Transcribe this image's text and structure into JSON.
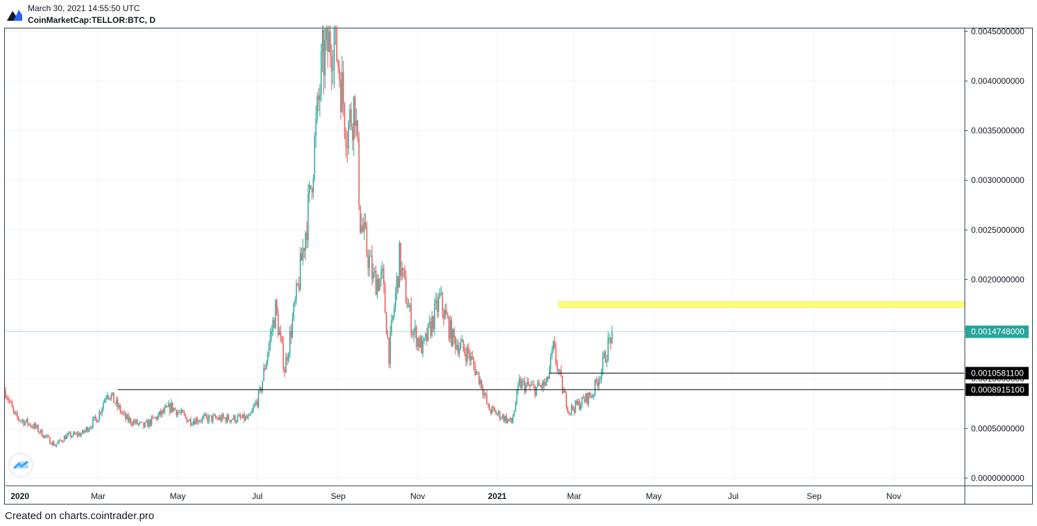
{
  "header": {
    "timestamp": "March 30, 2021 14:55:50 UTC",
    "symbol": "CoinMarketCap:TELLOR:BTC, D"
  },
  "footer": {
    "text": "Created on charts.cointrader.pro"
  },
  "colors": {
    "up": "#26a69a",
    "down": "#ef5350",
    "highlight_zone": "#ffff66",
    "last_price_badge": "#26a69a",
    "level_badge": "#000000",
    "frame": "#2e3f4f"
  },
  "icons": {
    "logo": "tradingview-logo-icon",
    "watermark": "tradingview-cloud-icon"
  },
  "chart_data": {
    "type": "candlestick",
    "title": "",
    "xlabel": "",
    "ylabel": "",
    "y_axis_position": "right",
    "grid": true,
    "ylim": [
      0.0,
      0.0046
    ],
    "x_range": [
      "2019-12-21",
      "2021-12-25"
    ],
    "x_ticks": [
      {
        "date": "2020-01-01",
        "label": "2020",
        "bold": true
      },
      {
        "date": "2020-03-01",
        "label": "Mar"
      },
      {
        "date": "2020-05-01",
        "label": "May"
      },
      {
        "date": "2020-07-01",
        "label": "Jul"
      },
      {
        "date": "2020-09-01",
        "label": "Sep"
      },
      {
        "date": "2020-11-01",
        "label": "Nov"
      },
      {
        "date": "2021-01-01",
        "label": "2021",
        "bold": true
      },
      {
        "date": "2021-03-01",
        "label": "Mar"
      },
      {
        "date": "2021-05-01",
        "label": "May"
      },
      {
        "date": "2021-07-01",
        "label": "Jul"
      },
      {
        "date": "2021-09-01",
        "label": "Sep"
      },
      {
        "date": "2021-11-01",
        "label": "Nov"
      }
    ],
    "y_ticks": [
      "0.0000000000",
      "0.0005000000",
      "0.0010000000",
      "0.0015000000",
      "0.0020000000",
      "0.0025000000",
      "0.0030000000",
      "0.0035000000",
      "0.0040000000",
      "0.0045000000"
    ],
    "last_price": {
      "value": 0.0014748,
      "label": "0.0014748000"
    },
    "horizontal_levels": [
      {
        "value": 0.001058,
        "label": "0.0010581100",
        "from": "2021-02-10"
      },
      {
        "value": 0.0008915,
        "label": "0.0008915100",
        "from": "2020-03-16"
      }
    ],
    "zone": {
      "from": "2021-02-17",
      "y_low": 0.00172,
      "y_high": 0.00178
    },
    "series_anchors": [
      {
        "date": "2019-12-21",
        "close": 0.00088
      },
      {
        "date": "2019-12-28",
        "close": 0.00062
      },
      {
        "date": "2020-01-12",
        "close": 0.00052
      },
      {
        "date": "2020-01-28",
        "close": 0.00033
      },
      {
        "date": "2020-02-05",
        "close": 0.00042
      },
      {
        "date": "2020-02-18",
        "close": 0.00045
      },
      {
        "date": "2020-03-01",
        "close": 0.00062
      },
      {
        "date": "2020-03-08",
        "close": 0.00088
      },
      {
        "date": "2020-03-22",
        "close": 0.0006
      },
      {
        "date": "2020-04-05",
        "close": 0.00052
      },
      {
        "date": "2020-04-26",
        "close": 0.00072
      },
      {
        "date": "2020-05-10",
        "close": 0.00058
      },
      {
        "date": "2020-05-20",
        "close": 0.0006
      },
      {
        "date": "2020-06-10",
        "close": 0.0006
      },
      {
        "date": "2020-06-25",
        "close": 0.0006
      },
      {
        "date": "2020-07-03",
        "close": 0.00085
      },
      {
        "date": "2020-07-15",
        "close": 0.0017
      },
      {
        "date": "2020-07-22",
        "close": 0.0011
      },
      {
        "date": "2020-08-01",
        "close": 0.0019
      },
      {
        "date": "2020-08-10",
        "close": 0.0028
      },
      {
        "date": "2020-08-20",
        "close": 0.0042
      },
      {
        "date": "2020-08-29",
        "close": 0.0045
      },
      {
        "date": "2020-09-03",
        "close": 0.004
      },
      {
        "date": "2020-09-08",
        "close": 0.0035
      },
      {
        "date": "2020-09-14",
        "close": 0.0038
      },
      {
        "date": "2020-09-18",
        "close": 0.0026
      },
      {
        "date": "2020-09-28",
        "close": 0.002
      },
      {
        "date": "2020-10-05",
        "close": 0.002
      },
      {
        "date": "2020-10-10",
        "close": 0.00125
      },
      {
        "date": "2020-10-18",
        "close": 0.0022
      },
      {
        "date": "2020-10-28",
        "close": 0.0015
      },
      {
        "date": "2020-11-05",
        "close": 0.0013
      },
      {
        "date": "2020-11-18",
        "close": 0.0018
      },
      {
        "date": "2020-11-28",
        "close": 0.0014
      },
      {
        "date": "2020-12-10",
        "close": 0.00125
      },
      {
        "date": "2020-12-20",
        "close": 0.00095
      },
      {
        "date": "2020-12-25",
        "close": 0.0007
      },
      {
        "date": "2021-01-05",
        "close": 0.00062
      },
      {
        "date": "2021-01-12",
        "close": 0.00056
      },
      {
        "date": "2021-01-18",
        "close": 0.00095
      },
      {
        "date": "2021-01-30",
        "close": 0.0009
      },
      {
        "date": "2021-02-08",
        "close": 0.00095
      },
      {
        "date": "2021-02-13",
        "close": 0.0013
      },
      {
        "date": "2021-02-20",
        "close": 0.0009
      },
      {
        "date": "2021-02-25",
        "close": 0.00068
      },
      {
        "date": "2021-03-05",
        "close": 0.00075
      },
      {
        "date": "2021-03-15",
        "close": 0.00085
      },
      {
        "date": "2021-03-22",
        "close": 0.0011
      },
      {
        "date": "2021-03-30",
        "close": 0.0014748
      }
    ]
  }
}
